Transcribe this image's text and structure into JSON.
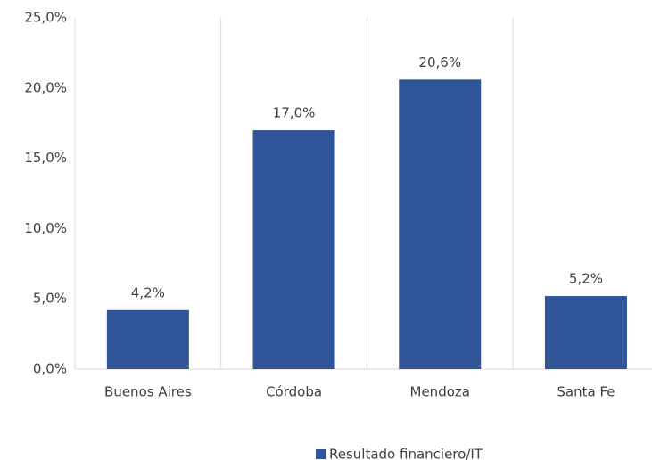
{
  "chart_data": {
    "type": "bar",
    "categories": [
      "Buenos Aires",
      "Córdoba",
      "Mendoza",
      "Santa Fe"
    ],
    "series": [
      {
        "name": "Resultado financiero/IT",
        "color": "#2f5597",
        "values": [
          4.2,
          17.0,
          20.6,
          5.2
        ],
        "value_labels": [
          "4,2%",
          "17,0%",
          "20,6%",
          "5,2%"
        ]
      }
    ],
    "ylim": [
      0,
      25
    ],
    "yticks": [
      {
        "value": 0,
        "label": "0,0%"
      },
      {
        "value": 5,
        "label": "5,0%"
      },
      {
        "value": 10,
        "label": "10,0%"
      },
      {
        "value": 15,
        "label": "15,0%"
      },
      {
        "value": 20,
        "label": "20,0%"
      },
      {
        "value": 25,
        "label": "25,0%"
      }
    ],
    "legend": "bottom"
  }
}
